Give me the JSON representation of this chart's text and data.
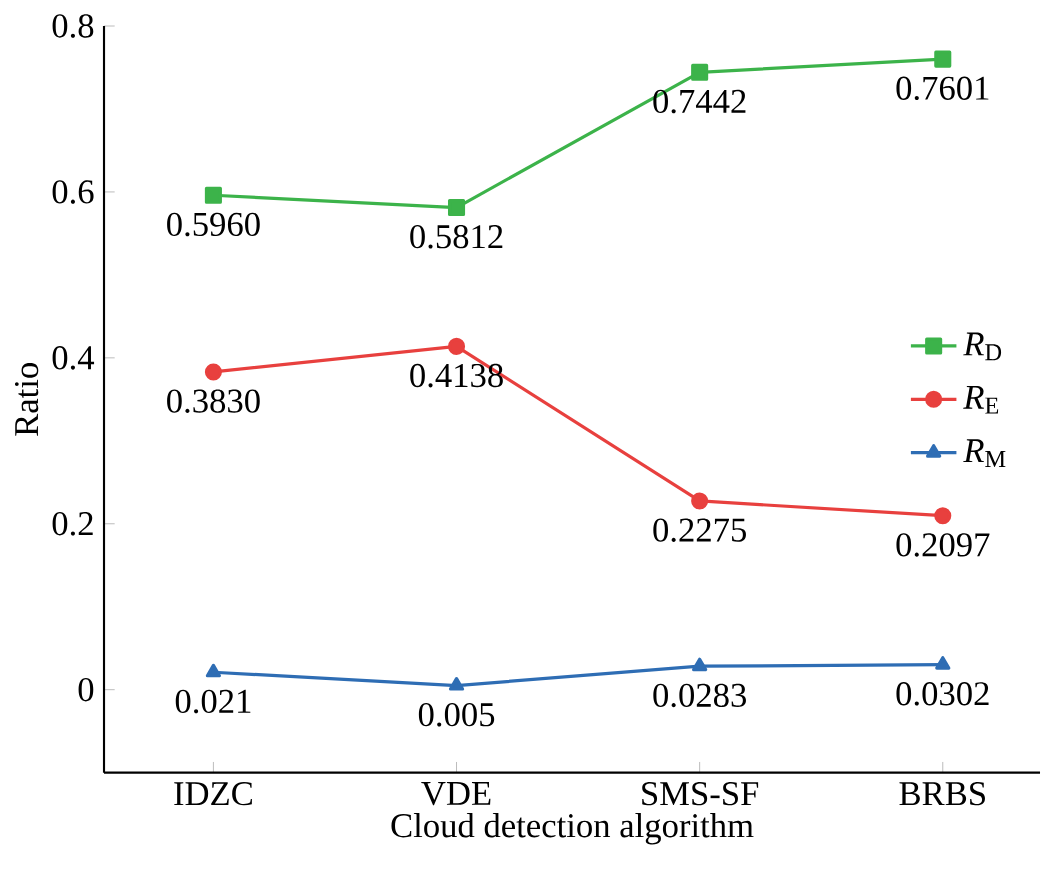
{
  "chart_data": {
    "type": "line",
    "xlabel": "Cloud detection algorithm",
    "ylabel": "Ratio",
    "categories": [
      "IDZC",
      "VDE",
      "SMS-SF",
      "BRBS"
    ],
    "series": [
      {
        "name": "*R*$_{D}$",
        "color": "#3cb34a",
        "marker": "square",
        "values": [
          0.596,
          0.5812,
          0.7442,
          0.7601
        ],
        "value_labels": [
          "0.5960",
          "0.5812",
          "0.7442",
          "0.7601"
        ]
      },
      {
        "name": "*R*$_{E}$",
        "color": "#e8403e",
        "marker": "circle",
        "values": [
          0.383,
          0.4138,
          0.2275,
          0.2097
        ],
        "value_labels": [
          "0.3830",
          "0.4138",
          "0.2275",
          "0.2097"
        ]
      },
      {
        "name": "*R*$_{M}$",
        "color": "#2e6db4",
        "marker": "triangle",
        "values": [
          0.021,
          0.005,
          0.0283,
          0.0302
        ],
        "value_labels": [
          "0.021",
          "0.005",
          "0.0283",
          "0.0302"
        ]
      }
    ],
    "ylim": [
      -0.1,
      0.8
    ],
    "yticks": [
      0,
      0.2,
      0.4,
      0.6,
      0.8
    ],
    "grid": false,
    "legend": "right",
    "line_style": "solid"
  }
}
